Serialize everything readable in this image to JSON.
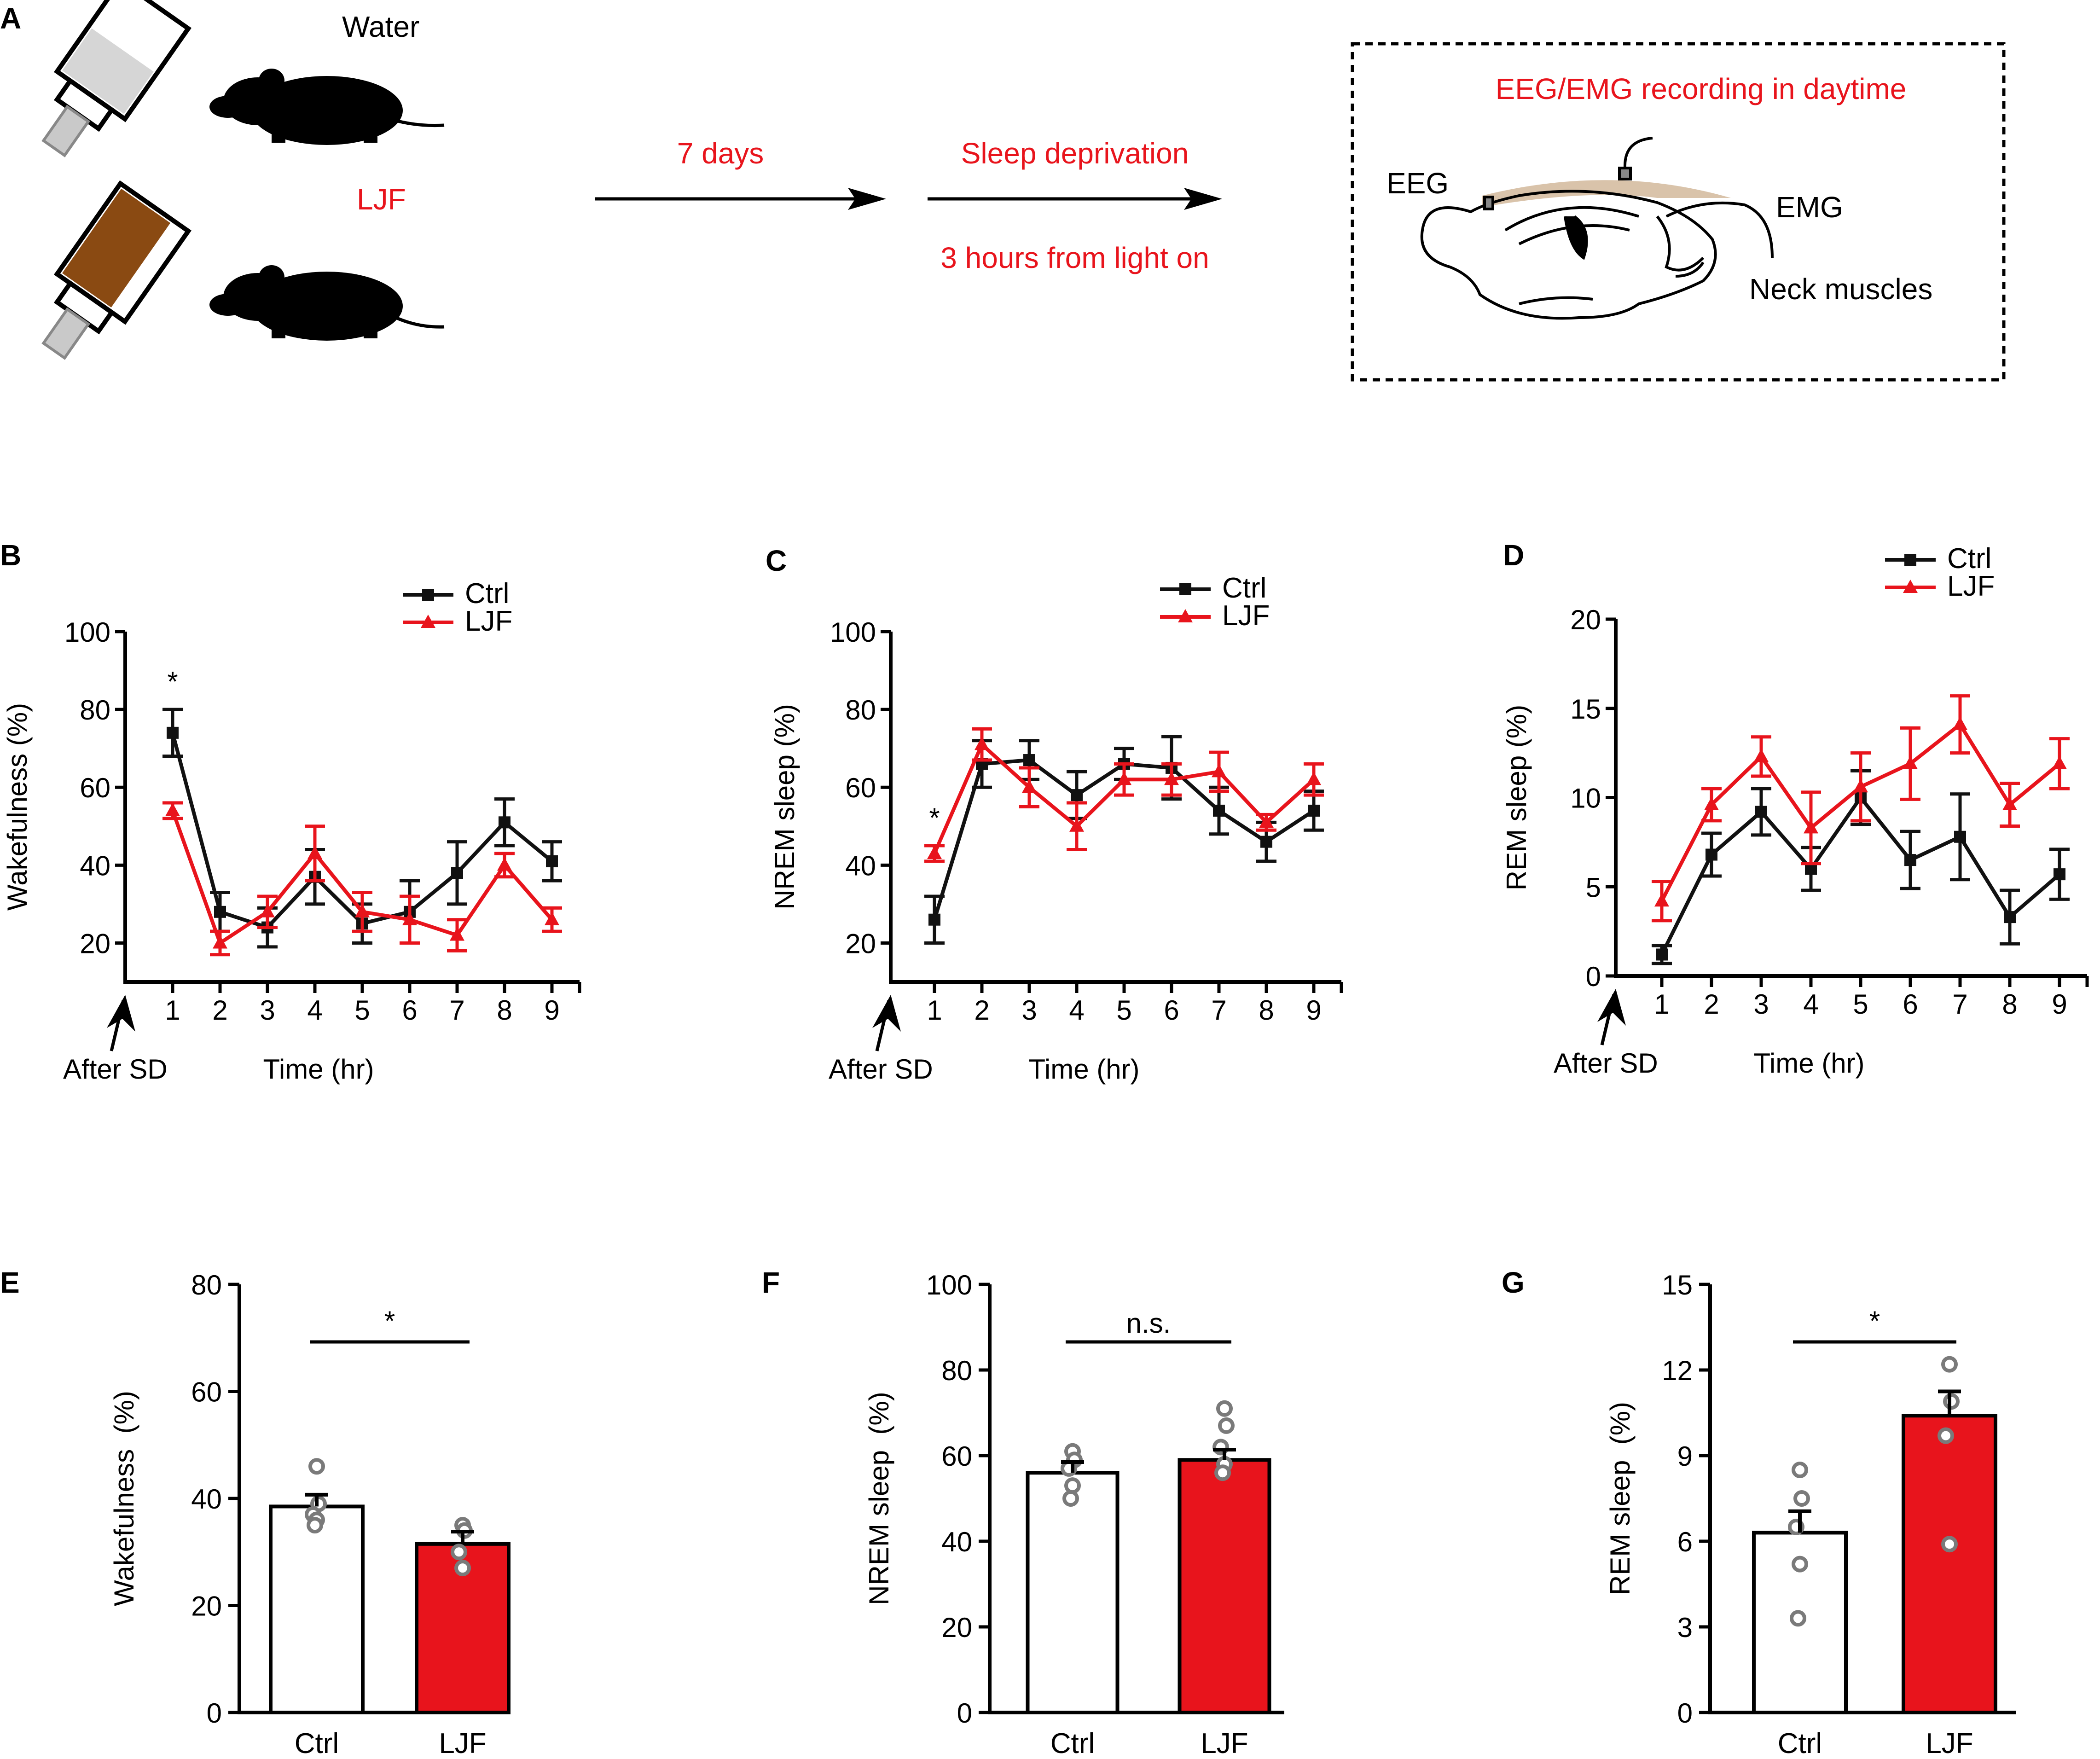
{
  "panel_labels": {
    "a": "A",
    "b": "B",
    "c": "C",
    "d": "D",
    "e": "E",
    "f": "F",
    "g": "G"
  },
  "schematic": {
    "water_label": "Water",
    "ljf_label": "LJF",
    "step1_label": "7 days",
    "step2_label": "Sleep deprivation",
    "step2_sublabel": "3 hours from light on",
    "recording_title": "EEG/EMG recording in daytime",
    "eeg_label": "EEG",
    "emg_label": "EMG",
    "neck_label": "Neck muscles"
  },
  "colors": {
    "ctrl": "#111111",
    "ljf": "#e8141c",
    "schematic_text": "#e8141c"
  },
  "chart_data": [
    {
      "id": "B",
      "type": "line",
      "title": "",
      "x": [
        1,
        2,
        3,
        4,
        5,
        6,
        7,
        8,
        9
      ],
      "xlabel": "Time (hr)",
      "ylabel": "Wakefulness (%)",
      "ylim": [
        10,
        100
      ],
      "yticks": [
        20,
        40,
        60,
        80,
        100
      ],
      "origin_label": "After SD",
      "legend": [
        "Ctrl",
        "LJF"
      ],
      "legend_position": "top-right",
      "series": [
        {
          "name": "Ctrl",
          "marker": "square",
          "values": [
            74,
            28,
            24,
            37,
            25,
            28,
            38,
            51,
            41
          ],
          "errors": [
            6,
            5,
            5,
            7,
            5,
            8,
            8,
            6,
            5
          ]
        },
        {
          "name": "LJF",
          "marker": "triangle",
          "values": [
            54,
            20,
            28,
            43,
            28,
            26,
            22,
            40,
            26
          ],
          "errors": [
            2,
            3,
            4,
            7,
            5,
            6,
            4,
            3,
            3
          ]
        }
      ],
      "annotations": [
        {
          "x": 1,
          "text": "*"
        }
      ]
    },
    {
      "id": "C",
      "type": "line",
      "title": "",
      "x": [
        1,
        2,
        3,
        4,
        5,
        6,
        7,
        8,
        9
      ],
      "xlabel": "Time (hr)",
      "ylabel": "NREM sleep (%)",
      "ylim": [
        10,
        100
      ],
      "yticks": [
        20,
        40,
        60,
        80,
        100
      ],
      "origin_label": "After SD",
      "legend": [
        "Ctrl",
        "LJF"
      ],
      "legend_position": "top-right",
      "series": [
        {
          "name": "Ctrl",
          "marker": "square",
          "values": [
            26,
            66,
            67,
            58,
            66,
            65,
            54,
            46,
            54
          ],
          "errors": [
            6,
            6,
            5,
            6,
            4,
            8,
            6,
            5,
            5
          ]
        },
        {
          "name": "LJF",
          "marker": "triangle",
          "values": [
            43,
            71,
            60,
            50,
            62,
            62,
            64,
            51,
            62
          ],
          "errors": [
            2,
            4,
            5,
            6,
            4,
            4,
            5,
            2,
            4
          ]
        }
      ],
      "annotations": [
        {
          "x": 1,
          "text": "*"
        }
      ]
    },
    {
      "id": "D",
      "type": "line",
      "title": "",
      "x": [
        1,
        2,
        3,
        4,
        5,
        6,
        7,
        8,
        9
      ],
      "xlabel": "Time (hr)",
      "ylabel": "REM sleep (%)",
      "ylim": [
        0,
        20
      ],
      "yticks": [
        0,
        5,
        10,
        15,
        20
      ],
      "origin_label": "After SD",
      "legend": [
        "Ctrl",
        "LJF"
      ],
      "legend_position": "top-right",
      "series": [
        {
          "name": "Ctrl",
          "marker": "square",
          "values": [
            1.2,
            6.8,
            9.2,
            6.0,
            10.0,
            6.5,
            7.8,
            3.3,
            5.7
          ],
          "errors": [
            0.5,
            1.2,
            1.3,
            1.2,
            1.5,
            1.6,
            2.4,
            1.5,
            1.4
          ]
        },
        {
          "name": "LJF",
          "marker": "triangle",
          "values": [
            4.2,
            9.6,
            12.3,
            8.3,
            10.6,
            11.9,
            14.1,
            9.6,
            11.9
          ],
          "errors": [
            1.1,
            0.9,
            1.1,
            2.0,
            1.9,
            2.0,
            1.6,
            1.2,
            1.4
          ]
        }
      ],
      "annotations": []
    },
    {
      "id": "E",
      "type": "bar",
      "title": "",
      "categories": [
        "Ctrl",
        "LJF"
      ],
      "values": [
        38.5,
        31.5
      ],
      "errors": [
        2.2,
        2.3
      ],
      "points": [
        [
          46,
          39,
          37,
          36,
          35
        ],
        [
          35,
          34,
          30,
          27
        ]
      ],
      "ylabel": "Wakefulness  (%)",
      "ylim": [
        0,
        80
      ],
      "yticks": [
        0,
        20,
        40,
        60,
        80
      ],
      "significance": "*"
    },
    {
      "id": "F",
      "type": "bar",
      "title": "",
      "categories": [
        "Ctrl",
        "LJF"
      ],
      "values": [
        56,
        59
      ],
      "errors": [
        2.5,
        2.4
      ],
      "points": [
        [
          61,
          59,
          57,
          53,
          50
        ],
        [
          71,
          67,
          62,
          58,
          56
        ]
      ],
      "ylabel": "NREM sleep  (%)",
      "ylim": [
        0,
        100
      ],
      "yticks": [
        0,
        20,
        40,
        60,
        80,
        100
      ],
      "significance": "n.s."
    },
    {
      "id": "G",
      "type": "bar",
      "title": "",
      "categories": [
        "Ctrl",
        "LJF"
      ],
      "values": [
        6.3,
        10.4
      ],
      "errors": [
        0.75,
        0.85
      ],
      "points": [
        [
          8.5,
          7.5,
          6.5,
          5.2,
          3.3
        ],
        [
          12.2,
          10.9,
          9.7,
          5.9
        ]
      ],
      "ylabel": "REM sleep  (%)",
      "ylim": [
        0,
        15
      ],
      "yticks": [
        0,
        3,
        6,
        9,
        12,
        15
      ],
      "significance": "*"
    }
  ]
}
